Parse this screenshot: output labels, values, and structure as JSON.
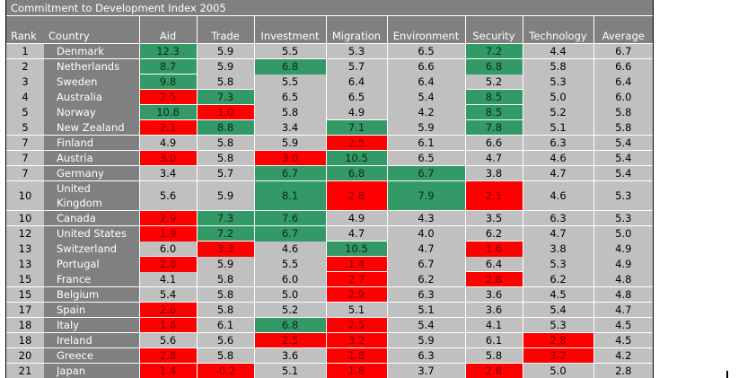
{
  "title": "Commitment to Development Index 2005",
  "columns": [
    "Rank",
    "Country",
    "Aid",
    "Trade",
    "Investment",
    "Migration",
    "Environment",
    "Security",
    "Technology",
    "Average"
  ],
  "colors": {
    "high": "#339966",
    "low": "#ff0000",
    "neutral": "#c0c0c0",
    "header": "#808080"
  },
  "rows": [
    {
      "rank": "1",
      "country": "Denmark",
      "values": [
        "12.3",
        "5.9",
        "5.5",
        "5.3",
        "6.5",
        "7.2",
        "4.4",
        "6.7"
      ],
      "flags": [
        "hi",
        "",
        "",
        "",
        "",
        "hi",
        "",
        ""
      ]
    },
    {
      "rank": "2",
      "country": "Netherlands",
      "values": [
        "8.7",
        "5.9",
        "6.8",
        "5.7",
        "6.6",
        "6.8",
        "5.8",
        "6.6"
      ],
      "flags": [
        "hi",
        "",
        "hi",
        "",
        "",
        "hi",
        "",
        ""
      ]
    },
    {
      "rank": "3",
      "country": "Sweden",
      "values": [
        "9.8",
        "5.8",
        "5.5",
        "6.4",
        "6.4",
        "5.2",
        "5.3",
        "6.4"
      ],
      "flags": [
        "hi",
        "",
        "",
        "",
        "",
        "",
        "",
        ""
      ]
    },
    {
      "rank": "4",
      "country": "Australia",
      "values": [
        "2.5",
        "7.3",
        "6.5",
        "6.5",
        "5.4",
        "8.5",
        "5.0",
        "6.0"
      ],
      "flags": [
        "lo",
        "hi",
        "",
        "",
        "",
        "hi",
        "",
        ""
      ]
    },
    {
      "rank": "5",
      "country": "Norway",
      "values": [
        "10.8",
        "1.0",
        "5.8",
        "4.9",
        "4.2",
        "8.5",
        "5.2",
        "5.8"
      ],
      "flags": [
        "hi",
        "lo",
        "",
        "",
        "",
        "hi",
        "",
        ""
      ]
    },
    {
      "rank": "5",
      "country": "New Zealand",
      "values": [
        "2.1",
        "8.8",
        "3.4",
        "7.1",
        "5.9",
        "7.8",
        "5.1",
        "5.8"
      ],
      "flags": [
        "lo",
        "hi",
        "",
        "hi",
        "",
        "hi",
        "",
        ""
      ]
    },
    {
      "rank": "7",
      "country": "Finland",
      "values": [
        "4.9",
        "5.8",
        "5.9",
        "2.5",
        "6.1",
        "6.6",
        "6.3",
        "5.4"
      ],
      "flags": [
        "",
        "",
        "",
        "lo",
        "",
        "",
        "",
        ""
      ]
    },
    {
      "rank": "7",
      "country": "Austria",
      "values": [
        "3.0",
        "5.8",
        "3.0",
        "10.5",
        "6.5",
        "4.7",
        "4.6",
        "5.4"
      ],
      "flags": [
        "lo",
        "",
        "lo",
        "hi",
        "",
        "",
        "",
        ""
      ]
    },
    {
      "rank": "7",
      "country": "Germany",
      "values": [
        "3.4",
        "5.7",
        "6.7",
        "6.8",
        "6.7",
        "3.8",
        "4.7",
        "5.4"
      ],
      "flags": [
        "",
        "",
        "hi",
        "hi",
        "hi",
        "",
        "",
        ""
      ]
    },
    {
      "rank": "10",
      "country": "United Kingdom",
      "values": [
        "5.6",
        "5.9",
        "8.1",
        "2.8",
        "7.9",
        "2.1",
        "4.6",
        "5.3"
      ],
      "flags": [
        "",
        "",
        "hi",
        "lo",
        "hi",
        "lo",
        "",
        ""
      ]
    },
    {
      "rank": "10",
      "country": "Canada",
      "values": [
        "2.9",
        "7.3",
        "7.6",
        "4.9",
        "4.3",
        "3.5",
        "6.3",
        "5.3"
      ],
      "flags": [
        "lo",
        "hi",
        "hi",
        "",
        "",
        "",
        "",
        ""
      ]
    },
    {
      "rank": "12",
      "country": "United States",
      "values": [
        "1.9",
        "7.2",
        "6.7",
        "4.7",
        "4.0",
        "6.2",
        "4.7",
        "5.0"
      ],
      "flags": [
        "lo",
        "hi",
        "hi",
        "",
        "",
        "",
        "",
        ""
      ]
    },
    {
      "rank": "13",
      "country": "Switzerland",
      "values": [
        "6.0",
        "3.3",
        "4.6",
        "10.5",
        "4.7",
        "1.6",
        "3.8",
        "4.9"
      ],
      "flags": [
        "",
        "lo",
        "",
        "hi",
        "",
        "lo",
        "",
        ""
      ]
    },
    {
      "rank": "13",
      "country": "Portugal",
      "values": [
        "2.8",
        "5.9",
        "5.5",
        "1.4",
        "6.7",
        "6.4",
        "5.3",
        "4.9"
      ],
      "flags": [
        "lo",
        "",
        "",
        "lo",
        "",
        "",
        "",
        ""
      ]
    },
    {
      "rank": "15",
      "country": "France",
      "values": [
        "4.1",
        "5.8",
        "6.0",
        "2.7",
        "6.2",
        "2.8",
        "6.2",
        "4.8"
      ],
      "flags": [
        "",
        "",
        "",
        "lo",
        "",
        "lo",
        "",
        ""
      ]
    },
    {
      "rank": "15",
      "country": "Belgium",
      "values": [
        "5.4",
        "5.8",
        "5.0",
        "2.9",
        "6.3",
        "3.6",
        "4.5",
        "4.8"
      ],
      "flags": [
        "",
        "",
        "",
        "lo",
        "",
        "",
        "",
        ""
      ]
    },
    {
      "rank": "17",
      "country": "Spain",
      "values": [
        "2.6",
        "5.8",
        "5.2",
        "5.1",
        "5.1",
        "3.6",
        "5.4",
        "4.7"
      ],
      "flags": [
        "lo",
        "",
        "",
        "",
        "",
        "",
        "",
        ""
      ]
    },
    {
      "rank": "18",
      "country": "Italy",
      "values": [
        "1.6",
        "6.1",
        "6.8",
        "2.5",
        "5.4",
        "4.1",
        "5.3",
        "4.5"
      ],
      "flags": [
        "lo",
        "",
        "hi",
        "lo",
        "",
        "",
        "",
        ""
      ]
    },
    {
      "rank": "18",
      "country": "Ireland",
      "values": [
        "5.6",
        "5.6",
        "2.5",
        "3.2",
        "5.9",
        "6.1",
        "2.8",
        "4.5"
      ],
      "flags": [
        "",
        "",
        "lo",
        "lo",
        "",
        "",
        "lo",
        ""
      ]
    },
    {
      "rank": "20",
      "country": "Greece",
      "values": [
        "2.8",
        "5.8",
        "3.6",
        "1.8",
        "6.3",
        "5.8",
        "3.2",
        "4.2"
      ],
      "flags": [
        "lo",
        "",
        "",
        "lo",
        "",
        "",
        "lo",
        ""
      ]
    },
    {
      "rank": "21",
      "country": "Japan",
      "values": [
        "1.4",
        "-0.2",
        "5.1",
        "1.8",
        "3.7",
        "2.8",
        "5.0",
        "2.8"
      ],
      "flags": [
        "lo",
        "lo",
        "",
        "lo",
        "",
        "lo",
        "",
        ""
      ]
    }
  ]
}
